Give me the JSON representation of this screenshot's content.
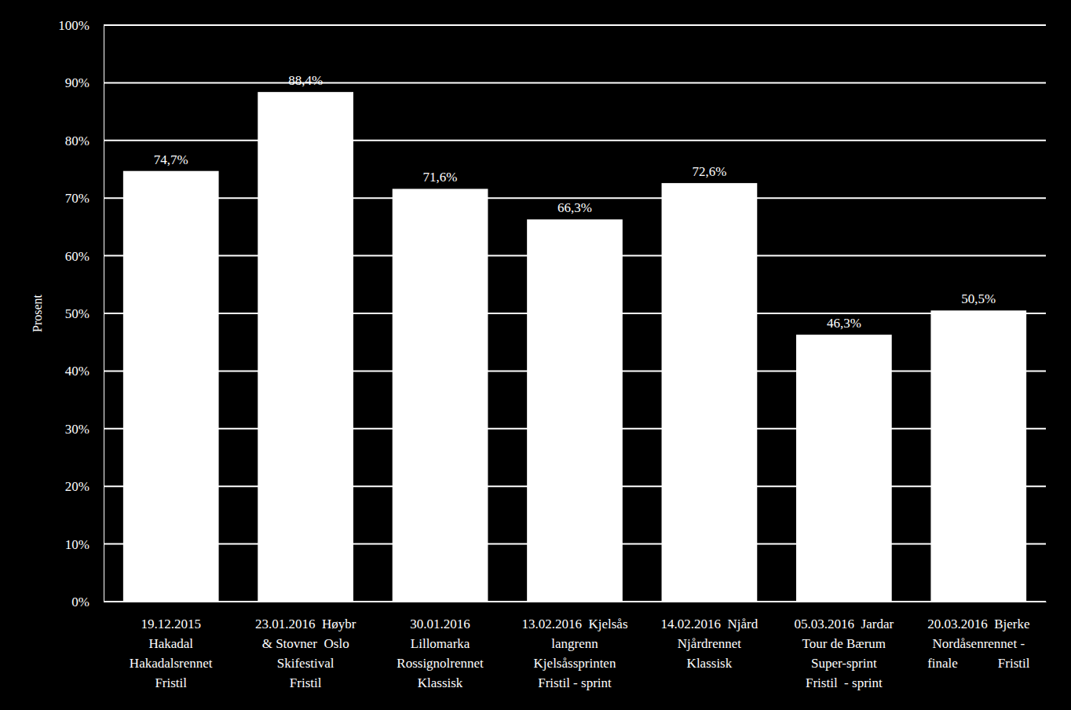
{
  "chart_data": {
    "type": "bar",
    "y_label": "Prosent",
    "categories": [
      "19.12.2015\nHakadal\nHakadalsrennet\nFristil",
      "23.01.2016  Høybr\n& Stovner  Oslo\nSkifestival\nFristil",
      "30.01.2016\nLillomarka\nRossignolrennet\nKlassisk",
      "13.02.2016  Kjelsås\nlangrenn\nKjelsåssprinten\nFristil - sprint",
      "14.02.2016  Njård\nNjårdrennet\nKlassisk",
      "05.03.2016  Jardar\nTour de Bærum\nSuper-sprint\nFristil  - sprint",
      "20.03.2016  Bjerke\nNordåsenrennet -\nfinale            Fristil"
    ],
    "values": [
      74.7,
      88.4,
      71.6,
      66.3,
      72.6,
      46.3,
      50.5
    ],
    "value_labels": [
      "74,7%",
      "88,4%",
      "71,6%",
      "66,3%",
      "72,6%",
      "46,3%",
      "50,5%"
    ],
    "color": "#ffffff",
    "ylim": [
      0,
      100
    ],
    "yticks": [
      {
        "value": 0,
        "label": "0%"
      },
      {
        "value": 10,
        "label": "10%"
      },
      {
        "value": 20,
        "label": "20%"
      },
      {
        "value": 30,
        "label": "30%"
      },
      {
        "value": 40,
        "label": "40%"
      },
      {
        "value": 50,
        "label": "50%"
      },
      {
        "value": 60,
        "label": "60%"
      },
      {
        "value": 70,
        "label": "70%"
      },
      {
        "value": 80,
        "label": "80%"
      },
      {
        "value": 90,
        "label": "90%"
      },
      {
        "value": 100,
        "label": "100%"
      }
    ],
    "grid": true,
    "data_labels": true
  }
}
